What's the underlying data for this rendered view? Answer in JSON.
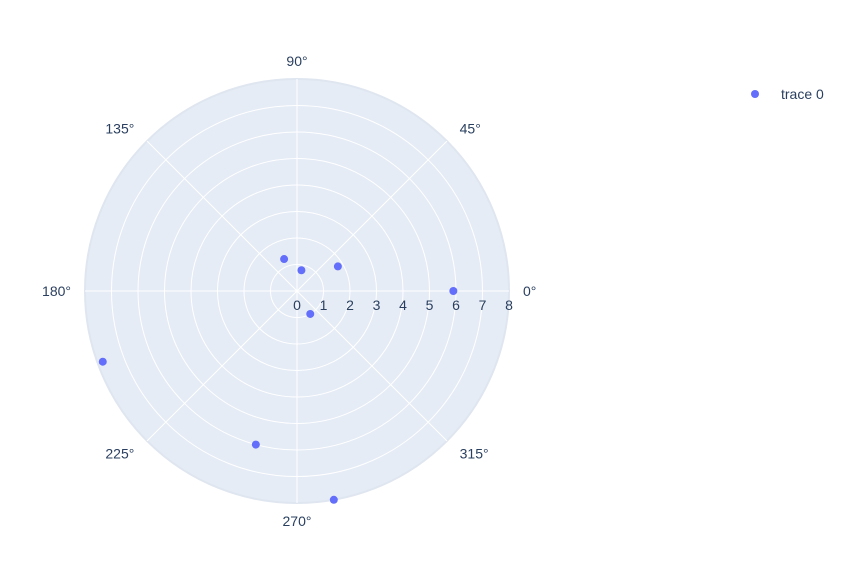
{
  "chart_data": {
    "type": "scatter",
    "subtype": "polar",
    "title": "",
    "radial_axis": {
      "range": [
        0,
        8
      ],
      "ticks": [
        0,
        1,
        2,
        3,
        4,
        5,
        6,
        7,
        8
      ],
      "tick_labels": [
        "0",
        "1",
        "2",
        "3",
        "4",
        "5",
        "6",
        "7",
        "8"
      ],
      "grid": true
    },
    "angular_axis": {
      "ticks": [
        0,
        45,
        90,
        135,
        180,
        225,
        270,
        315
      ],
      "tick_labels": [
        "0°",
        "45°",
        "90°",
        "135°",
        "180°",
        "225°",
        "270°",
        "315°"
      ],
      "direction": "counterclockwise",
      "grid": true
    },
    "legend": {
      "position": "top-right",
      "entries": [
        "trace 0"
      ]
    },
    "series": [
      {
        "name": "trace 0",
        "color": "#636efa",
        "r": [
          0.8,
          1.8,
          1.3,
          5.9,
          7.8,
          6.0,
          1.0,
          8.0
        ],
        "theta": [
          78,
          31,
          112,
          0,
          200,
          255,
          300,
          280
        ]
      }
    ],
    "colors": {
      "plot_background": "#e5ecf6",
      "grid": "#ffffff",
      "text": "#2a3f5f",
      "marker": "#636efa"
    }
  }
}
